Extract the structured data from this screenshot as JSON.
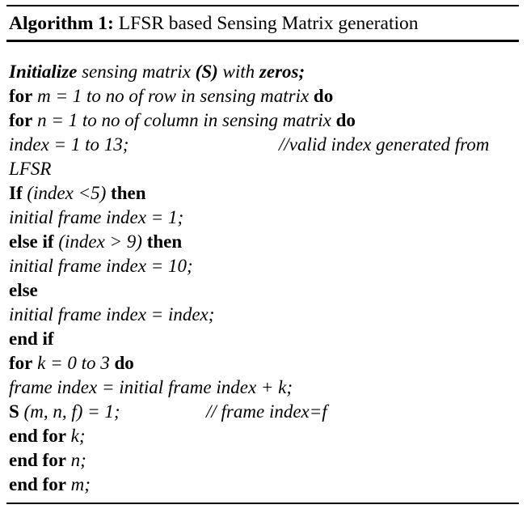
{
  "caption": {
    "label": "Algorithm 1:",
    "title": " LFSR based Sensing Matrix generation"
  },
  "lines": {
    "l1": {
      "kw1": "Initialize",
      "t1": " sensing matrix ",
      "kw2": "(S)",
      "t2": " with ",
      "kw3": "zeros;"
    },
    "l2": {
      "kw1": "for",
      "t1": " m = 1 to no of row in sensing matrix ",
      "kw2": "do"
    },
    "l3": {
      "kw1": "for",
      "t1": " n = 1 to no of column in sensing matrix ",
      "kw2": "do"
    },
    "l4": {
      "code": "index = 1 to 13;",
      "comment": "//valid index generated from"
    },
    "l5": {
      "code": "LFSR"
    },
    "l6": {
      "kw1": "If",
      "t1": " (index <5) ",
      "kw2": "then"
    },
    "l7": {
      "code": "initial frame index = 1;"
    },
    "l8": {
      "kw1": "else if",
      "t1": " (index > 9) ",
      "kw2": "then"
    },
    "l9": {
      "code": "initial frame index = 10;"
    },
    "l10": {
      "kw1": "else"
    },
    "l11": {
      "code": "initial frame index = index;"
    },
    "l12": {
      "kw1": "end if"
    },
    "l13": {
      "kw1": "for",
      "t1": " k = 0 to 3 ",
      "kw2": "do"
    },
    "l14": {
      "code": "frame index = initial frame index + k;"
    },
    "l15": {
      "kw1": "S",
      "t1": " (m, n, f) = 1;",
      "comment": "// frame index=f"
    },
    "l16": {
      "kw1": "end for",
      "t1": " k;"
    },
    "l17": {
      "kw1": "end for",
      "t1": " n;"
    },
    "l18": {
      "kw1": "end for",
      "t1": " m;"
    }
  }
}
